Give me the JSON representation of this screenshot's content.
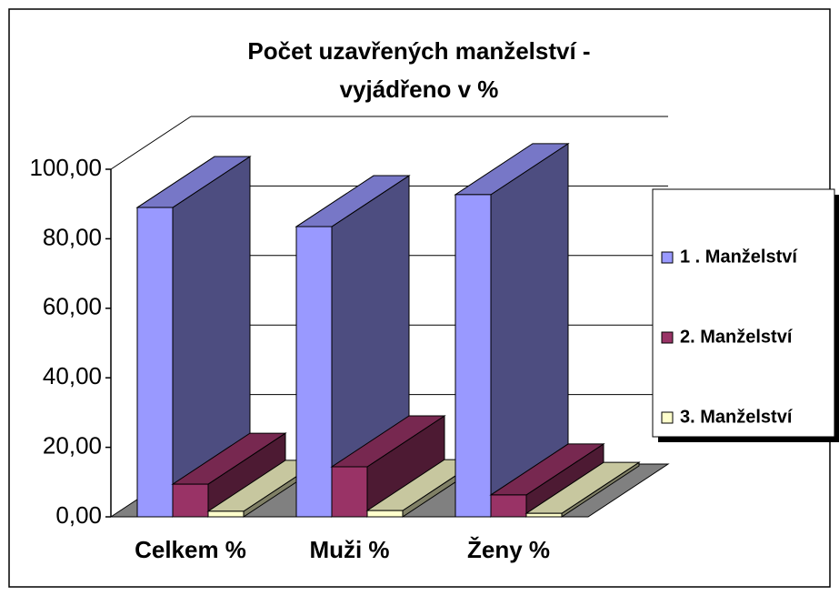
{
  "chart_data": {
    "type": "bar3d",
    "title": [
      "Počet uzavřených manželství -",
      "vyjádřeno v %"
    ],
    "categories": [
      "Celkem %",
      "Muži %",
      "Ženy %"
    ],
    "series": [
      {
        "name": "1 . Manželství",
        "color": "#9999ff",
        "values": [
          89.0,
          83.5,
          92.7
        ]
      },
      {
        "name": "2. Manželství",
        "color": "#993366",
        "values": [
          9.4,
          14.4,
          6.3
        ]
      },
      {
        "name": "3. Manželství",
        "color": "#ffffcc",
        "values": [
          1.6,
          1.8,
          1.0
        ]
      }
    ],
    "ylim": [
      0,
      100
    ],
    "yticks": [
      {
        "value": 0,
        "label": "0,00"
      },
      {
        "value": 20,
        "label": "20,00"
      },
      {
        "value": 40,
        "label": "40,00"
      },
      {
        "value": 60,
        "label": "60,00"
      },
      {
        "value": 80,
        "label": "80,00"
      },
      {
        "value": 100,
        "label": "100,00"
      }
    ],
    "grid": true,
    "legend": "right"
  }
}
